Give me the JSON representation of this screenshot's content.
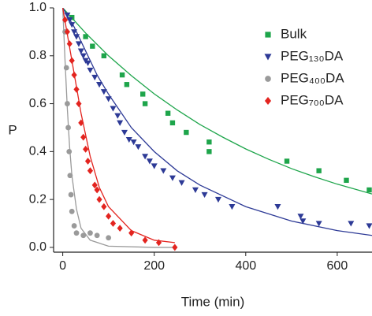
{
  "chart_data": {
    "type": "scatter",
    "x_label": "Time (min)",
    "y_label": "P",
    "xlim": [
      -20,
      676
    ],
    "ylim": [
      -0.02,
      1.0
    ],
    "xticks": [
      0,
      200,
      400,
      600
    ],
    "yticks": [
      {
        "value": 0,
        "label": "0.0"
      },
      0.2,
      0.4,
      0.6,
      0.8,
      {
        "value": 1,
        "label": "1.0"
      }
    ],
    "legend": "upper right",
    "series": [
      {
        "name": "Bulk",
        "color": "#1ea54b",
        "marker": "square",
        "x": [
          20,
          50,
          65,
          90,
          130,
          140,
          175,
          180,
          230,
          240,
          270,
          320,
          320,
          490,
          560,
          620,
          670
        ],
        "values": [
          0.96,
          0.88,
          0.84,
          0.8,
          0.72,
          0.68,
          0.64,
          0.6,
          0.56,
          0.52,
          0.48,
          0.44,
          0.4,
          0.36,
          0.32,
          0.28,
          0.24
        ],
        "fit": {
          "x": [
            0,
            50,
            100,
            150,
            200,
            250,
            300,
            350,
            400,
            450,
            500,
            550,
            600,
            676
          ],
          "values": [
            1.0,
            0.895,
            0.8,
            0.717,
            0.641,
            0.574,
            0.513,
            0.46,
            0.411,
            0.368,
            0.329,
            0.295,
            0.264,
            0.223
          ]
        }
      },
      {
        "name": "PEG₁₃₀DA",
        "color": "#2d3a96",
        "marker": "triangle-down",
        "x": [
          10,
          15,
          20,
          25,
          30,
          35,
          40,
          45,
          50,
          55,
          60,
          70,
          80,
          90,
          100,
          110,
          120,
          125,
          135,
          145,
          155,
          165,
          180,
          190,
          200,
          220,
          240,
          260,
          290,
          310,
          340,
          370,
          470,
          520,
          525,
          560,
          630,
          670
        ],
        "values": [
          0.97,
          0.95,
          0.93,
          0.9,
          0.88,
          0.85,
          0.82,
          0.8,
          0.78,
          0.77,
          0.74,
          0.71,
          0.68,
          0.65,
          0.62,
          0.58,
          0.55,
          0.52,
          0.48,
          0.45,
          0.44,
          0.42,
          0.38,
          0.36,
          0.34,
          0.32,
          0.29,
          0.27,
          0.24,
          0.22,
          0.2,
          0.17,
          0.17,
          0.13,
          0.11,
          0.1,
          0.1,
          0.09
        ],
        "fit": {
          "x": [
            0,
            25,
            50,
            75,
            100,
            150,
            200,
            250,
            300,
            400,
            500,
            600,
            676
          ],
          "values": [
            1.0,
            0.92,
            0.82,
            0.72,
            0.64,
            0.5,
            0.4,
            0.32,
            0.26,
            0.17,
            0.11,
            0.07,
            0.05
          ]
        }
      },
      {
        "name": "PEG₄₀₀DA",
        "color": "#9a9a9a",
        "marker": "circle",
        "x": [
          5,
          8,
          10,
          12,
          14,
          16,
          18,
          20,
          25,
          30,
          45,
          60,
          75,
          100
        ],
        "values": [
          0.9,
          0.75,
          0.6,
          0.5,
          0.4,
          0.3,
          0.22,
          0.15,
          0.09,
          0.06,
          0.05,
          0.06,
          0.05,
          0.04
        ],
        "fit": {
          "x": [
            0,
            5,
            10,
            15,
            20,
            30,
            40,
            60,
            100,
            200,
            245
          ],
          "values": [
            1.0,
            0.78,
            0.58,
            0.42,
            0.3,
            0.16,
            0.08,
            0.03,
            0.005,
            0,
            0
          ]
        }
      },
      {
        "name": "PEG₇₀₀DA",
        "color": "#e3241f",
        "marker": "diamond",
        "x": [
          5,
          10,
          15,
          20,
          25,
          30,
          35,
          40,
          45,
          50,
          55,
          60,
          70,
          75,
          80,
          90,
          100,
          110,
          125,
          150,
          180,
          210,
          245
        ],
        "values": [
          0.95,
          0.9,
          0.85,
          0.78,
          0.72,
          0.66,
          0.6,
          0.52,
          0.46,
          0.41,
          0.36,
          0.32,
          0.26,
          0.24,
          0.2,
          0.17,
          0.13,
          0.1,
          0.08,
          0.06,
          0.03,
          0.02,
          0
        ],
        "fit": {
          "x": [
            0,
            20,
            40,
            60,
            80,
            100,
            150,
            200,
            245
          ],
          "values": [
            1.0,
            0.78,
            0.56,
            0.38,
            0.25,
            0.17,
            0.07,
            0.03,
            0.02
          ]
        }
      }
    ]
  }
}
